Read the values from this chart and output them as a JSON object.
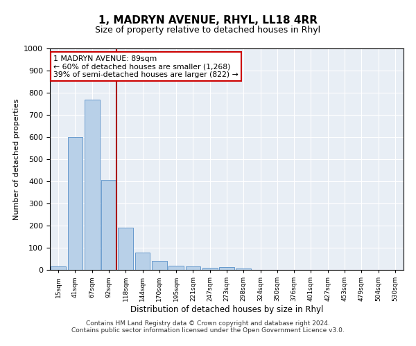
{
  "title": "1, MADRYN AVENUE, RHYL, LL18 4RR",
  "subtitle": "Size of property relative to detached houses in Rhyl",
  "xlabel": "Distribution of detached houses by size in Rhyl",
  "ylabel": "Number of detached properties",
  "footnote1": "Contains HM Land Registry data © Crown copyright and database right 2024.",
  "footnote2": "Contains public sector information licensed under the Open Government Licence v3.0.",
  "bin_labels": [
    "15sqm",
    "41sqm",
    "67sqm",
    "92sqm",
    "118sqm",
    "144sqm",
    "170sqm",
    "195sqm",
    "221sqm",
    "247sqm",
    "273sqm",
    "298sqm",
    "324sqm",
    "350sqm",
    "376sqm",
    "401sqm",
    "427sqm",
    "453sqm",
    "479sqm",
    "504sqm",
    "530sqm"
  ],
  "bar_values": [
    15,
    600,
    770,
    405,
    190,
    78,
    40,
    18,
    17,
    10,
    12,
    7,
    0,
    0,
    0,
    0,
    0,
    0,
    0,
    0,
    0
  ],
  "bar_color": "#b8d0e8",
  "bar_edge_color": "#6699cc",
  "ylim": [
    0,
    1000
  ],
  "yticks": [
    0,
    100,
    200,
    300,
    400,
    500,
    600,
    700,
    800,
    900,
    1000
  ],
  "annotation_text": "1 MADRYN AVENUE: 89sqm\n← 60% of detached houses are smaller (1,268)\n39% of semi-detached houses are larger (822) →",
  "annotation_box_color": "#ffffff",
  "annotation_box_edge": "#cc0000",
  "vline_color": "#aa0000",
  "vline_bin_index": 3,
  "bg_color": "#e8eef5"
}
